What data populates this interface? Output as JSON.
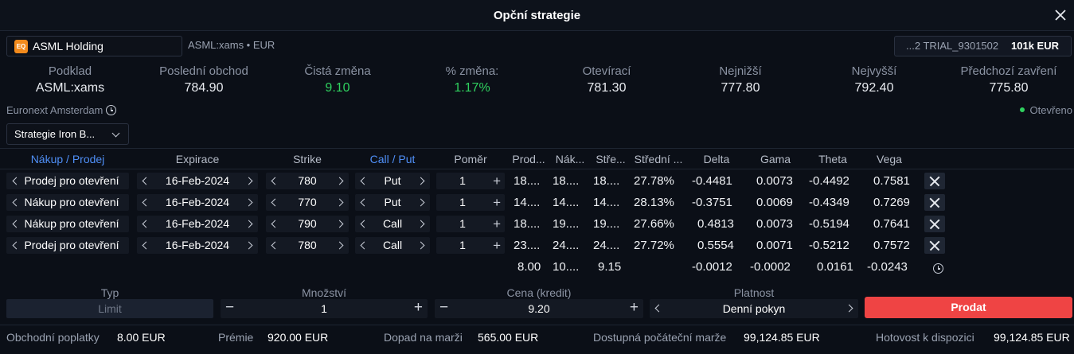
{
  "window": {
    "title": "Opční strategie"
  },
  "instrument": {
    "name": "ASML Holding",
    "logo_text": "EQ",
    "symbol_line": "ASML:xams • EUR"
  },
  "account": {
    "name": "...2 TRIAL_9301502",
    "value": "101k EUR"
  },
  "stats": [
    {
      "label": "Podklad",
      "value": "ASML:xams"
    },
    {
      "label": "Poslední obchod",
      "value": "784.90"
    },
    {
      "label": "Čistá změna",
      "value": "9.10"
    },
    {
      "label": "% změna:",
      "value": "1.17%"
    },
    {
      "label": "Otevírací",
      "value": "781.30"
    },
    {
      "label": "Nejnižší",
      "value": "777.80"
    },
    {
      "label": "Nejvyšší",
      "value": "792.40"
    },
    {
      "label": "Předchozí zavření",
      "value": "775.80"
    }
  ],
  "exchange": "Euronext Amsterdam",
  "market_status": "Otevřeno",
  "strategy_select": "Strategie Iron B...",
  "columns": [
    "Nákup / Prodej",
    "Expirace",
    "Strike",
    "Call / Put",
    "Poměr",
    "Prod...",
    "Nák...",
    "Stře...",
    "Střední ...",
    "Delta",
    "Gama",
    "Theta",
    "Vega"
  ],
  "legs": [
    {
      "side": "Prodej pro otevření",
      "expiry": "16-Feb-2024",
      "strike": "780",
      "type": "Put",
      "ratio": "1",
      "bid": "18....",
      "ask": "18....",
      "mid": "18....",
      "iv": "27.78%",
      "delta": "-0.4481",
      "gamma": "0.0073",
      "theta": "-0.4492",
      "vega": "0.7581"
    },
    {
      "side": "Nákup pro otevření",
      "expiry": "16-Feb-2024",
      "strike": "770",
      "type": "Put",
      "ratio": "1",
      "bid": "14....",
      "ask": "14....",
      "mid": "14....",
      "iv": "28.13%",
      "delta": "-0.3751",
      "gamma": "0.0069",
      "theta": "-0.4349",
      "vega": "0.7269"
    },
    {
      "side": "Nákup pro otevření",
      "expiry": "16-Feb-2024",
      "strike": "790",
      "type": "Call",
      "ratio": "1",
      "bid": "18....",
      "ask": "19....",
      "mid": "19....",
      "iv": "27.66%",
      "delta": "0.4813",
      "gamma": "0.0073",
      "theta": "-0.5194",
      "vega": "0.7641"
    },
    {
      "side": "Prodej pro otevření",
      "expiry": "16-Feb-2024",
      "strike": "780",
      "type": "Call",
      "ratio": "1",
      "bid": "23....",
      "ask": "24....",
      "mid": "24....",
      "iv": "27.72%",
      "delta": "0.5554",
      "gamma": "0.0071",
      "theta": "-0.5212",
      "vega": "0.7572"
    }
  ],
  "totals": {
    "bid": "8.00",
    "ask": "10....",
    "mid": "9.15",
    "delta": "-0.0012",
    "gamma": "-0.0002",
    "theta": "0.0161",
    "vega": "-0.0243"
  },
  "order": {
    "type_label": "Typ",
    "type_value": "Limit",
    "qty_label": "Množství",
    "qty_value": "1",
    "price_label": "Cena (kredit)",
    "price_value": "9.20",
    "validity_label": "Platnost",
    "validity_value": "Denní pokyn",
    "submit": "Prodat"
  },
  "footer": [
    {
      "label": "Obchodní poplatky",
      "value": "8.00 EUR"
    },
    {
      "label": "Prémie",
      "value": "920.00 EUR"
    },
    {
      "label": "Dopad na marži",
      "value": "565.00 EUR"
    },
    {
      "label": "Dostupná počáteční marže",
      "value": "99,124.85 EUR"
    },
    {
      "label": "Hotovost k dispozici",
      "value": "99,124.85 EUR"
    }
  ],
  "colors": {
    "positive": "#2fd15f",
    "sell": "#ef4444",
    "link": "#4f8ff7"
  }
}
